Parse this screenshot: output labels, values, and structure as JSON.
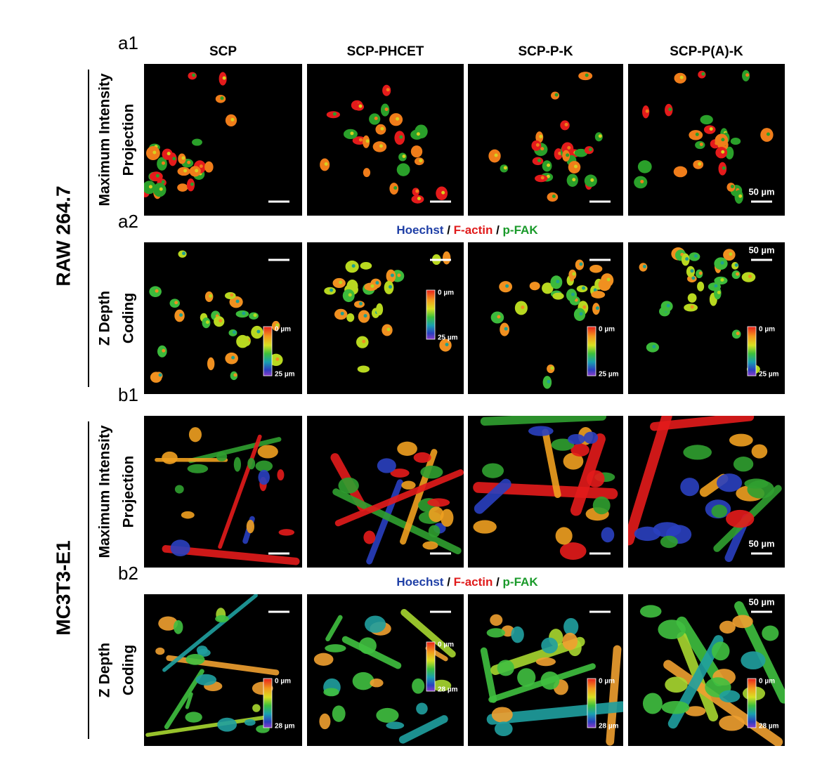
{
  "columns": [
    "SCP",
    "SCP-PHCET",
    "SCP-P-K",
    "SCP-P(A)-K"
  ],
  "groups": [
    {
      "label": "RAW 264.7",
      "stain_legend": [
        {
          "text": "Hoechst",
          "color": "#1f3fa6"
        },
        {
          "text": "/",
          "color": "#000000"
        },
        {
          "text": "F-actin",
          "color": "#e01b1b"
        },
        {
          "text": "/",
          "color": "#000000"
        },
        {
          "text": "p-FAK",
          "color": "#1a9a2a"
        }
      ],
      "rows": [
        {
          "panel": "a1",
          "view": [
            "Maximum Intensity",
            "Projection"
          ],
          "scale_bar": "50 µm"
        },
        {
          "panel": "a2",
          "view": [
            "Z Depth",
            "Coding"
          ],
          "scale_bar": "50 µm",
          "colorbar": [
            "0 µm",
            "25 µm"
          ]
        }
      ]
    },
    {
      "label": "MC3T3-E1",
      "stain_legend": [
        {
          "text": "Hoechst",
          "color": "#1f3fa6"
        },
        {
          "text": "/",
          "color": "#000000"
        },
        {
          "text": "F-actin",
          "color": "#e01b1b"
        },
        {
          "text": "/",
          "color": "#000000"
        },
        {
          "text": "p-FAK",
          "color": "#1a9a2a"
        }
      ],
      "rows": [
        {
          "panel": "b1",
          "view": [
            "Maximum Intensity",
            "Projection"
          ],
          "scale_bar": "50 µm"
        },
        {
          "panel": "b2",
          "view": [
            "Z Depth",
            "Coding"
          ],
          "scale_bar": "50 µm",
          "colorbar": [
            "0 µm",
            "28 µm"
          ]
        }
      ]
    }
  ]
}
